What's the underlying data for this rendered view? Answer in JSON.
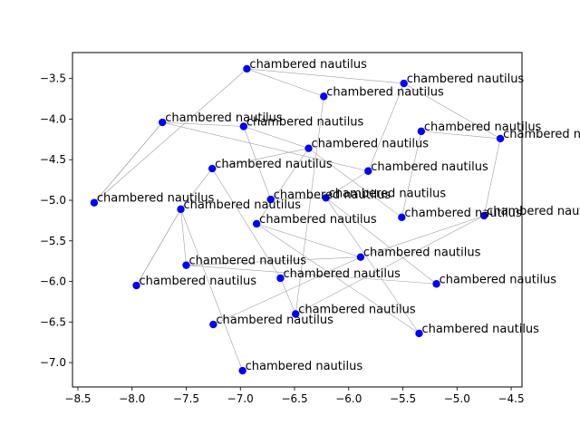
{
  "chart_data": {
    "type": "scatter",
    "title": "",
    "xlabel": "",
    "ylabel": "",
    "xlim": [
      -8.55,
      -4.4
    ],
    "ylim": [
      -7.3,
      -3.18
    ],
    "xticks": [
      -8.5,
      -8.0,
      -7.5,
      -7.0,
      -6.5,
      -6.0,
      -5.5,
      -5.0,
      -4.5
    ],
    "xtick_labels": [
      "−8.5",
      "−8.0",
      "−7.5",
      "−7.0",
      "−6.5",
      "−6.0",
      "−5.5",
      "−5.0",
      "−4.5"
    ],
    "yticks": [
      -3.5,
      -4.0,
      -4.5,
      -5.0,
      -5.5,
      -6.0,
      -6.5,
      -7.0
    ],
    "ytick_labels": [
      "−3.5",
      "−4.0",
      "−4.5",
      "−5.0",
      "−5.5",
      "−6.0",
      "−6.5",
      "−7.0"
    ],
    "grid": false,
    "marker_color": "#0000ff",
    "edge_color": "#a0a0a0",
    "points": [
      {
        "x": -6.94,
        "y": -3.38,
        "label": "chambered nautilus"
      },
      {
        "x": -5.49,
        "y": -3.56,
        "label": "chambered nautilus"
      },
      {
        "x": -6.23,
        "y": -3.72,
        "label": "chambered nautilus"
      },
      {
        "x": -7.72,
        "y": -4.04,
        "label": "chambered nautilus"
      },
      {
        "x": -6.97,
        "y": -4.09,
        "label": "chambered nautilus"
      },
      {
        "x": -5.33,
        "y": -4.15,
        "label": "chambered nautilus"
      },
      {
        "x": -4.6,
        "y": -4.24,
        "label": "chambered nautilus"
      },
      {
        "x": -6.37,
        "y": -4.36,
        "label": "chambered nautilus"
      },
      {
        "x": -7.26,
        "y": -4.61,
        "label": "chambered nautilus"
      },
      {
        "x": -5.82,
        "y": -4.64,
        "label": "chambered nautilus"
      },
      {
        "x": -8.35,
        "y": -5.03,
        "label": "chambered nautilus"
      },
      {
        "x": -6.72,
        "y": -4.99,
        "label": "chambered nautilus"
      },
      {
        "x": -6.21,
        "y": -4.97,
        "label": "chambered nautilus"
      },
      {
        "x": -7.55,
        "y": -5.11,
        "label": "chambered nautilus"
      },
      {
        "x": -5.51,
        "y": -5.21,
        "label": "chambered nautilus"
      },
      {
        "x": -4.75,
        "y": -5.19,
        "label": "chambered nautilus"
      },
      {
        "x": -6.85,
        "y": -5.29,
        "label": "chambered nautilus"
      },
      {
        "x": -5.89,
        "y": -5.7,
        "label": "chambered nautilus"
      },
      {
        "x": -7.5,
        "y": -5.8,
        "label": "chambered nautilus"
      },
      {
        "x": -6.63,
        "y": -5.96,
        "label": "chambered nautilus"
      },
      {
        "x": -7.96,
        "y": -6.05,
        "label": "chambered nautilus"
      },
      {
        "x": -5.19,
        "y": -6.03,
        "label": "chambered nautilus"
      },
      {
        "x": -6.49,
        "y": -6.4,
        "label": "chambered nautilus"
      },
      {
        "x": -7.25,
        "y": -6.53,
        "label": "chambered nautilus"
      },
      {
        "x": -5.35,
        "y": -6.64,
        "label": "chambered nautilus"
      },
      {
        "x": -6.98,
        "y": -7.1,
        "label": "chambered nautilus"
      }
    ],
    "edges": [
      [
        0,
        1
      ],
      [
        1,
        6
      ],
      [
        0,
        10
      ],
      [
        2,
        22
      ],
      [
        3,
        10
      ],
      [
        3,
        4
      ],
      [
        3,
        9
      ],
      [
        4,
        11
      ],
      [
        4,
        7
      ],
      [
        5,
        6
      ],
      [
        5,
        14
      ],
      [
        6,
        15
      ],
      [
        7,
        8
      ],
      [
        7,
        16
      ],
      [
        7,
        14
      ],
      [
        8,
        13
      ],
      [
        8,
        19
      ],
      [
        9,
        12
      ],
      [
        10,
        3
      ],
      [
        11,
        12
      ],
      [
        12,
        24
      ],
      [
        12,
        21
      ],
      [
        13,
        18
      ],
      [
        13,
        20
      ],
      [
        13,
        25
      ],
      [
        15,
        17
      ],
      [
        15,
        22
      ],
      [
        16,
        17
      ],
      [
        16,
        24
      ],
      [
        17,
        18
      ],
      [
        17,
        23
      ],
      [
        18,
        21
      ],
      [
        19,
        22
      ],
      [
        20,
        13
      ],
      [
        2,
        0
      ],
      [
        9,
        1
      ]
    ]
  }
}
